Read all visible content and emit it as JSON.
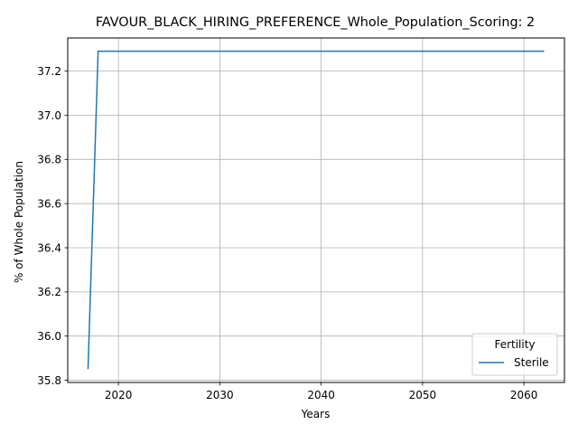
{
  "chart_data": {
    "type": "line",
    "title": "FAVOUR_BLACK_HIRING_PREFERENCE_Whole_Population_Scoring: 2",
    "xlabel": "Years",
    "ylabel": "% of Whole Population",
    "xlim": [
      2015,
      2064
    ],
    "ylim": [
      35.79,
      37.35
    ],
    "x_ticks": [
      2020,
      2030,
      2040,
      2050,
      2060
    ],
    "y_ticks": [
      35.8,
      36.0,
      36.2,
      36.4,
      36.6,
      36.8,
      37.0,
      37.2
    ],
    "grid": true,
    "legend": {
      "title": "Fertility",
      "position": "lower-right"
    },
    "series": [
      {
        "name": "Sterile",
        "color": "#1f77b4",
        "x": [
          2017,
          2018,
          2019,
          2020,
          2021,
          2022,
          2023,
          2024,
          2025,
          2026,
          2027,
          2028,
          2029,
          2030,
          2031,
          2032,
          2033,
          2034,
          2035,
          2036,
          2037,
          2038,
          2039,
          2040,
          2041,
          2042,
          2043,
          2044,
          2045,
          2046,
          2047,
          2048,
          2049,
          2050,
          2051,
          2052,
          2053,
          2054,
          2055,
          2056,
          2057,
          2058,
          2059,
          2060,
          2061,
          2062
        ],
        "y": [
          35.85,
          37.29,
          37.29,
          37.29,
          37.29,
          37.29,
          37.29,
          37.29,
          37.29,
          37.29,
          37.29,
          37.29,
          37.29,
          37.29,
          37.29,
          37.29,
          37.29,
          37.29,
          37.29,
          37.29,
          37.29,
          37.29,
          37.29,
          37.29,
          37.29,
          37.29,
          37.29,
          37.29,
          37.29,
          37.29,
          37.29,
          37.29,
          37.29,
          37.29,
          37.29,
          37.29,
          37.29,
          37.29,
          37.29,
          37.29,
          37.29,
          37.29,
          37.29,
          37.29,
          37.29,
          37.29
        ]
      }
    ]
  }
}
